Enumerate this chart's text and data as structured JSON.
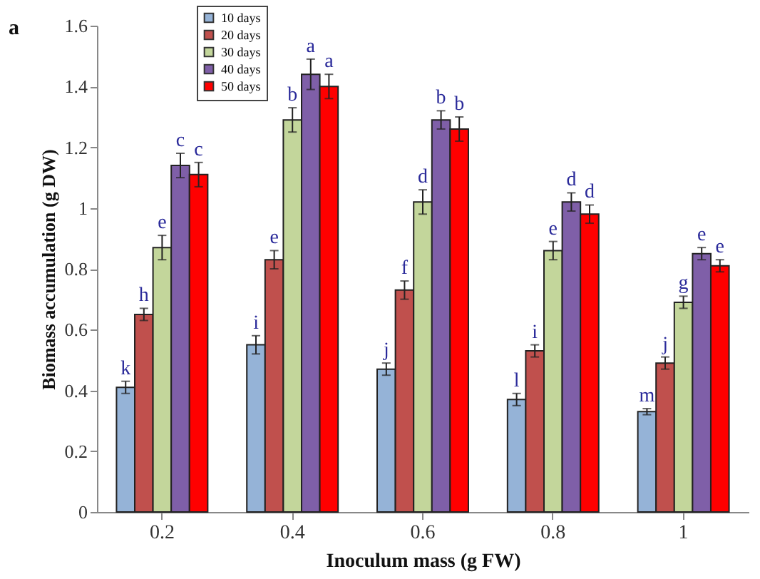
{
  "chart_data": {
    "type": "bar",
    "xlabel": "Inoculum mass (g FW)",
    "ylabel": "Biomass accumulation (g DW)",
    "annotations": [
      "a"
    ],
    "categories": [
      "0.2",
      "0.4",
      "0.6",
      "0.8",
      "1"
    ],
    "series": [
      {
        "name": "10 days",
        "color": "#95b3d7",
        "values": [
          0.41,
          0.55,
          0.47,
          0.37,
          0.33
        ],
        "errors": [
          0.02,
          0.03,
          0.02,
          0.02,
          0.01
        ],
        "value_labels": [
          "k",
          "i",
          "j",
          "l",
          "m"
        ]
      },
      {
        "name": "20 days",
        "color": "#c0504d",
        "values": [
          0.65,
          0.83,
          0.73,
          0.53,
          0.49
        ],
        "errors": [
          0.02,
          0.03,
          0.03,
          0.02,
          0.02
        ],
        "value_labels": [
          "h",
          "e",
          "f",
          "i",
          "j"
        ]
      },
      {
        "name": "30 days",
        "color": "#c3d69b",
        "values": [
          0.87,
          1.29,
          1.02,
          0.86,
          0.69
        ],
        "errors": [
          0.04,
          0.04,
          0.04,
          0.03,
          0.02
        ],
        "value_labels": [
          "e",
          "b",
          "d",
          "e",
          "g"
        ]
      },
      {
        "name": "40 days",
        "color": "#7f5fa8",
        "values": [
          1.14,
          1.44,
          1.29,
          1.02,
          0.85
        ],
        "errors": [
          0.04,
          0.05,
          0.03,
          0.03,
          0.02
        ],
        "value_labels": [
          "c",
          "a",
          "b",
          "d",
          "e"
        ]
      },
      {
        "name": "50 days",
        "color": "#ff0000",
        "values": [
          1.11,
          1.4,
          1.26,
          0.98,
          0.81
        ],
        "errors": [
          0.04,
          0.04,
          0.04,
          0.03,
          0.02
        ],
        "value_labels": [
          "c",
          "a",
          "b",
          "d",
          "e"
        ]
      }
    ],
    "ylim": [
      0,
      1.6
    ],
    "yticks": [
      0,
      0.2,
      0.4,
      0.6,
      0.8,
      1,
      1.2,
      1.4,
      1.6
    ],
    "grid": false,
    "legend": "top left"
  }
}
